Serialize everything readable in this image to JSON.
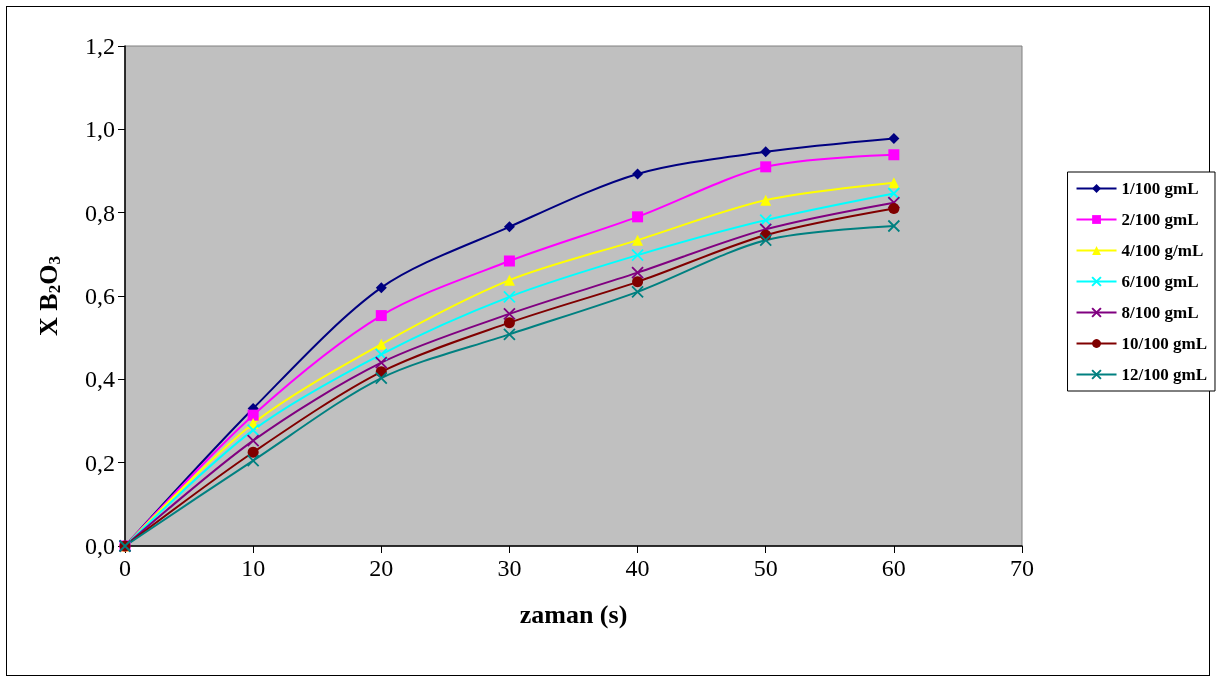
{
  "chart_data": {
    "type": "line",
    "xlabel": "zaman (s)",
    "ylabel": "X B$_{2}$O$_{3}$",
    "x": [
      0,
      10,
      20,
      30,
      40,
      50,
      60
    ],
    "xlim": [
      0,
      70
    ],
    "xticks": [
      0,
      10,
      20,
      30,
      40,
      50,
      60,
      70
    ],
    "ylim": [
      0,
      1.2
    ],
    "yticks": [
      {
        "value": 0,
        "label": "0,0"
      },
      {
        "value": 0.2,
        "label": "0,2"
      },
      {
        "value": 0.4,
        "label": "0,4"
      },
      {
        "value": 0.6,
        "label": "0,6"
      },
      {
        "value": 0.8,
        "label": "0,8"
      },
      {
        "value": 1.0,
        "label": "1,0"
      },
      {
        "value": 1.2,
        "label": "1,2"
      }
    ],
    "grid": false,
    "legend": "right",
    "series": [
      {
        "name": "1/100 gmL",
        "color": "#000080",
        "marker": "diamond",
        "values": [
          0,
          0.33,
          0.62,
          0.766,
          0.893,
          0.946,
          0.978
        ]
      },
      {
        "name": "2/100 gmL",
        "color": "#ff00ff",
        "marker": "square",
        "values": [
          0,
          0.314,
          0.553,
          0.684,
          0.79,
          0.91,
          0.939
        ]
      },
      {
        "name": "4/100 g/mL",
        "color": "#ffff00",
        "marker": "triangle",
        "values": [
          0,
          0.294,
          0.484,
          0.638,
          0.734,
          0.83,
          0.872
        ]
      },
      {
        "name": "6/100 gmL",
        "color": "#00ffff",
        "marker": "cross",
        "values": [
          0,
          0.278,
          0.46,
          0.598,
          0.698,
          0.782,
          0.846
        ]
      },
      {
        "name": "8/100 gmL",
        "color": "#800080",
        "marker": "cross",
        "values": [
          0,
          0.253,
          0.44,
          0.557,
          0.656,
          0.76,
          0.824
        ]
      },
      {
        "name": "10/100 gmL",
        "color": "#800000",
        "marker": "circle",
        "values": [
          0,
          0.225,
          0.418,
          0.536,
          0.634,
          0.746,
          0.81
        ]
      },
      {
        "name": "12/100 gmL",
        "color": "#008080",
        "marker": "cross",
        "values": [
          0,
          0.205,
          0.403,
          0.508,
          0.61,
          0.734,
          0.768
        ]
      }
    ]
  }
}
